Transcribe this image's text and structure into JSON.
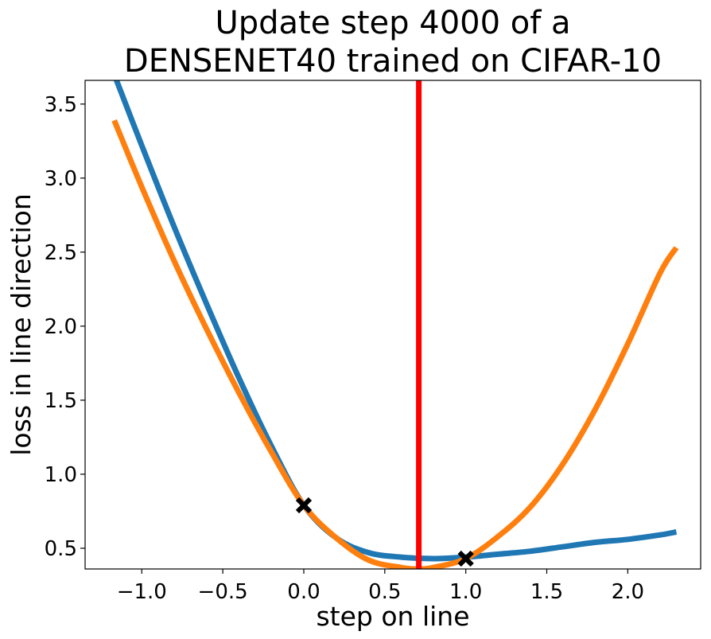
{
  "chart_data": {
    "type": "line",
    "title": [
      "Update step 4000 of a",
      "DENSENET40 trained on CIFAR-10"
    ],
    "xlabel": "step on line",
    "ylabel": "loss in line direction",
    "xlim": [
      -1.35,
      2.45
    ],
    "ylim": [
      0.36,
      3.66
    ],
    "xticks": [
      -1.0,
      -0.5,
      0.0,
      0.5,
      1.0,
      1.5,
      2.0
    ],
    "xtick_labels": [
      "−1.0",
      "−0.5",
      "0.0",
      "0.5",
      "1.0",
      "1.5",
      "2.0"
    ],
    "yticks": [
      0.5,
      1.0,
      1.5,
      2.0,
      2.5,
      3.0,
      3.5
    ],
    "ytick_labels": [
      "0.5",
      "1.0",
      "1.5",
      "2.0",
      "2.5",
      "3.0",
      "3.5"
    ],
    "grid": false,
    "series": [
      {
        "color": "#1f77b4",
        "x": [
          -1.17,
          -1.0,
          -0.8,
          -0.6,
          -0.4,
          -0.2,
          0.0,
          0.2,
          0.4,
          0.6,
          0.8,
          1.0,
          1.2,
          1.4,
          1.6,
          1.8,
          2.0,
          2.2,
          2.3
        ],
        "y": [
          3.7,
          3.22,
          2.67,
          2.15,
          1.65,
          1.19,
          0.79,
          0.57,
          0.47,
          0.44,
          0.43,
          0.44,
          0.46,
          0.48,
          0.51,
          0.54,
          0.56,
          0.59,
          0.61
        ]
      },
      {
        "color": "#ff7f0e",
        "x": [
          -1.17,
          -1.0,
          -0.8,
          -0.6,
          -0.4,
          -0.2,
          0.0,
          0.2,
          0.4,
          0.6,
          0.7,
          0.8,
          1.0,
          1.2,
          1.4,
          1.6,
          1.8,
          2.0,
          2.2,
          2.3
        ],
        "y": [
          3.39,
          2.94,
          2.44,
          1.98,
          1.55,
          1.15,
          0.79,
          0.57,
          0.42,
          0.37,
          0.36,
          0.37,
          0.43,
          0.58,
          0.78,
          1.07,
          1.44,
          1.88,
          2.36,
          2.53
        ]
      }
    ],
    "vline": {
      "x": 0.71,
      "color": "#ff0000"
    },
    "markers": [
      {
        "x": 0.0,
        "y": 0.79,
        "symbol": "X",
        "color": "#000000"
      },
      {
        "x": 1.0,
        "y": 0.43,
        "symbol": "X",
        "color": "#000000"
      }
    ]
  }
}
